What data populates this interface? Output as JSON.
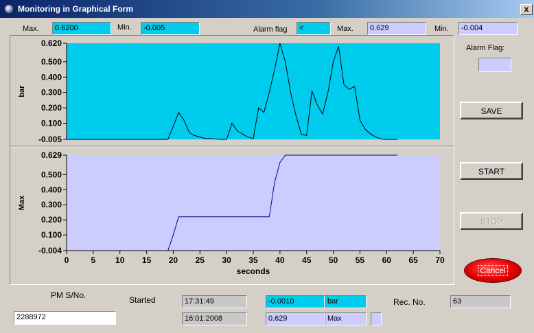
{
  "window": {
    "title": "Monitoring in Graphical Form",
    "close_glyph": "x"
  },
  "top_bar": {
    "max_label": "Max.",
    "max_value": "0.6200",
    "min_label": "Min.",
    "min_value": "-0.005",
    "alarm_flag_label": "Alarm flag",
    "alarm_flag_value": "<",
    "max2_label": "Max.",
    "max2_value": "0.629",
    "min2_label": "Min.",
    "min2_value": "-0.004"
  },
  "side": {
    "alarm_flag_label": "Alarm Flag:",
    "alarm_flag_value": "",
    "save_label": "SAVE",
    "start_label": "START",
    "stop_label": "STOP",
    "cancel_label": "Cancel"
  },
  "bottom": {
    "pm_sno_label": "PM S/No.",
    "pm_sno_value": "2288972",
    "started_label": "Started",
    "time_value": "17:31:49",
    "date_value": "16:01:2008",
    "reading_value": "-0.0010",
    "reading_unit": "bar",
    "max_reading_value": "0.629",
    "max_reading_label": "Max",
    "rec_no_label": "Rec. No.",
    "rec_no_value": "63"
  },
  "colors": {
    "top_bg": "#00ccee",
    "bottom_bg": "#ccccff",
    "cancel": "#e00000"
  },
  "chart_data": [
    {
      "type": "line",
      "ylabel": "bar",
      "xlim": [
        0,
        70
      ],
      "ylim": [
        -0.005,
        0.62
      ],
      "yticks": [
        "0.620",
        "0.500",
        "0.400",
        "0.300",
        "0.200",
        "0.100",
        "-0.005"
      ],
      "ytick_values": [
        0.62,
        0.5,
        0.4,
        0.3,
        0.2,
        0.1,
        -0.005
      ],
      "x": [
        0,
        19,
        20,
        21,
        22,
        23,
        24,
        25,
        26,
        27,
        28,
        29,
        30,
        31,
        32,
        33,
        34,
        35,
        36,
        37,
        38,
        39,
        40,
        41,
        42,
        43,
        44,
        45,
        46,
        47,
        48,
        49,
        50,
        51,
        52,
        53,
        54,
        55,
        56,
        57,
        58,
        59,
        60,
        61,
        62
      ],
      "y": [
        -0.005,
        -0.005,
        0.08,
        0.17,
        0.12,
        0.04,
        0.02,
        0.01,
        0.0,
        0.0,
        -0.003,
        -0.005,
        -0.005,
        0.1,
        0.05,
        0.03,
        0.01,
        0.0,
        0.2,
        0.17,
        0.3,
        0.45,
        0.62,
        0.5,
        0.3,
        0.15,
        0.03,
        0.02,
        0.31,
        0.22,
        0.16,
        0.3,
        0.5,
        0.6,
        0.35,
        0.32,
        0.34,
        0.12,
        0.06,
        0.03,
        0.01,
        -0.003,
        -0.005,
        -0.005,
        -0.005
      ],
      "bg": "#00ccee"
    },
    {
      "type": "line",
      "ylabel": "Max",
      "xlabel": "seconds",
      "xlim": [
        0,
        70
      ],
      "ylim": [
        -0.004,
        0.629
      ],
      "xticks": [
        "0",
        "5",
        "10",
        "15",
        "20",
        "25",
        "30",
        "35",
        "40",
        "45",
        "50",
        "55",
        "60",
        "65",
        "70"
      ],
      "xtick_values": [
        0,
        5,
        10,
        15,
        20,
        25,
        30,
        35,
        40,
        45,
        50,
        55,
        60,
        65,
        70
      ],
      "yticks": [
        "0.629",
        "0.500",
        "0.400",
        "0.300",
        "0.200",
        "0.100",
        "-0.004"
      ],
      "ytick_values": [
        0.629,
        0.5,
        0.4,
        0.3,
        0.2,
        0.1,
        -0.004
      ],
      "x": [
        0,
        19,
        20,
        21,
        24,
        37,
        38,
        39,
        40,
        41,
        62
      ],
      "y": [
        -0.004,
        -0.004,
        0.1,
        0.22,
        0.22,
        0.22,
        0.22,
        0.45,
        0.58,
        0.629,
        0.629
      ],
      "bg": "#ccccff"
    }
  ]
}
